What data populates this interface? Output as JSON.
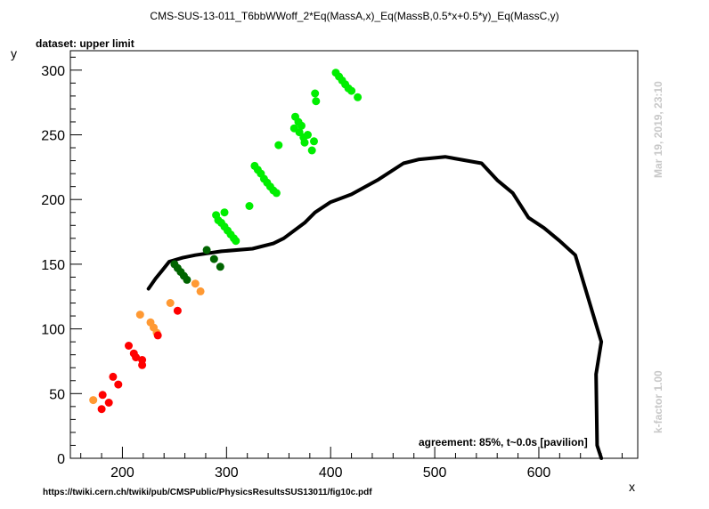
{
  "chart_data": {
    "type": "scatter",
    "title": "CMS-SUS-13-011_T6bbWWoff_2*Eq(MassA,x)_Eq(MassB,0.5*x+0.5*y)_Eq(MassC,y)",
    "xlabel": "x",
    "ylabel": "y",
    "xlim": [
      150,
      695
    ],
    "ylim": [
      0,
      315
    ],
    "xticks": [
      200,
      300,
      400,
      500,
      600
    ],
    "yticks": [
      0,
      50,
      100,
      150,
      200,
      250,
      300
    ],
    "grid": false,
    "legend": "none",
    "series": [
      {
        "color": "#00ee00",
        "points": [
          [
            290,
            188
          ],
          [
            292,
            184
          ],
          [
            295,
            182
          ],
          [
            298,
            190
          ],
          [
            298,
            179
          ],
          [
            301,
            176
          ],
          [
            304,
            173
          ],
          [
            307,
            170
          ],
          [
            309,
            168
          ],
          [
            322,
            195
          ],
          [
            327,
            226
          ],
          [
            330,
            223
          ],
          [
            333,
            220
          ],
          [
            336,
            216
          ],
          [
            339,
            213
          ],
          [
            342,
            210
          ],
          [
            345,
            207
          ],
          [
            348,
            205
          ],
          [
            350,
            242
          ],
          [
            365,
            255
          ],
          [
            366,
            264
          ],
          [
            369,
            260
          ],
          [
            370,
            252
          ],
          [
            372,
            257
          ],
          [
            374,
            248
          ],
          [
            375,
            244
          ],
          [
            378,
            250
          ],
          [
            382,
            238
          ],
          [
            384,
            245
          ],
          [
            385,
            282
          ],
          [
            405,
            298
          ],
          [
            408,
            295
          ],
          [
            411,
            292
          ],
          [
            414,
            289
          ],
          [
            417,
            286
          ],
          [
            420,
            284
          ],
          [
            386,
            276
          ],
          [
            426,
            279
          ]
        ]
      },
      {
        "color": "#006400",
        "points": [
          [
            250,
            150
          ],
          [
            253,
            147
          ],
          [
            256,
            144
          ],
          [
            259,
            141
          ],
          [
            262,
            138
          ],
          [
            281,
            161
          ],
          [
            288,
            154
          ],
          [
            294,
            148
          ]
        ]
      },
      {
        "color": "#ff9933",
        "points": [
          [
            172,
            45
          ],
          [
            217,
            111
          ],
          [
            227,
            105
          ],
          [
            230,
            101
          ],
          [
            233,
            97
          ],
          [
            246,
            120
          ],
          [
            270,
            135
          ],
          [
            275,
            129
          ]
        ]
      },
      {
        "color": "#ff0000",
        "points": [
          [
            180,
            38
          ],
          [
            181,
            49
          ],
          [
            187,
            43
          ],
          [
            191,
            63
          ],
          [
            196,
            57
          ],
          [
            206,
            87
          ],
          [
            211,
            81
          ],
          [
            213,
            78
          ],
          [
            219,
            76
          ],
          [
            219,
            72
          ],
          [
            234,
            95
          ],
          [
            253,
            114
          ]
        ]
      }
    ],
    "limit_line": {
      "color": "#000000",
      "points": [
        [
          225,
          131
        ],
        [
          232,
          139
        ],
        [
          238,
          145
        ],
        [
          245,
          152
        ],
        [
          258,
          155
        ],
        [
          270,
          157
        ],
        [
          295,
          160
        ],
        [
          325,
          162
        ],
        [
          345,
          166
        ],
        [
          355,
          170
        ],
        [
          375,
          182
        ],
        [
          385,
          190
        ],
        [
          400,
          198
        ],
        [
          420,
          204
        ],
        [
          445,
          215
        ],
        [
          470,
          228
        ],
        [
          485,
          231
        ],
        [
          510,
          233
        ],
        [
          545,
          228
        ],
        [
          560,
          215
        ],
        [
          575,
          205
        ],
        [
          590,
          186
        ],
        [
          605,
          178
        ],
        [
          620,
          168
        ],
        [
          635,
          157
        ],
        [
          660,
          90
        ],
        [
          655,
          65
        ],
        [
          656,
          10
        ],
        [
          660,
          0
        ]
      ]
    }
  },
  "texts": {
    "title": "CMS-SUS-13-011_T6bbWWoff_2*Eq(MassA,x)_Eq(MassB,0.5*x+0.5*y)_Eq(MassC,y)",
    "dataset": "dataset: upper limit",
    "agreement": "agreement: 85%, t~0.0s [pavilion]",
    "url": "https://twiki.cern.ch/twiki/pub/CMSPublic/PhysicsResultsSUS13011/fig10c.pdf",
    "timestamp": "Mar 19, 2019, 23:10",
    "kfactor": "k-factor 1.00",
    "xlabel": "x",
    "ylabel": "y"
  }
}
